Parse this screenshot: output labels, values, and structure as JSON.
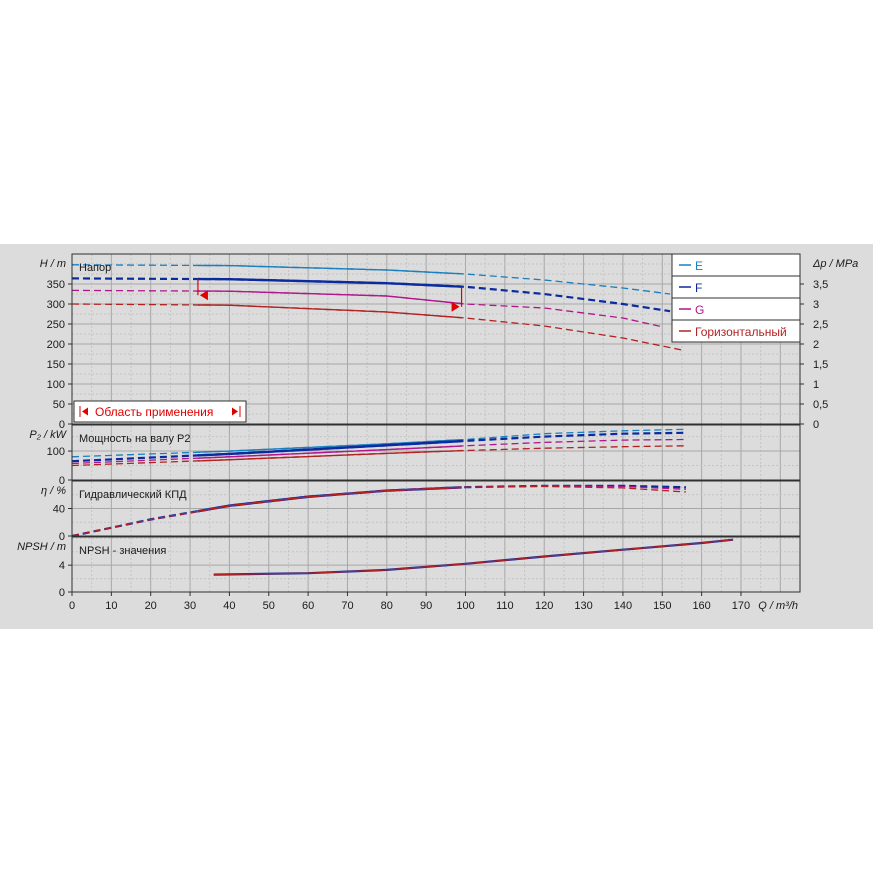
{
  "chart_data": {
    "type": "line",
    "xlabel": "Q / m³/h",
    "x_ticks": [
      0,
      10,
      20,
      30,
      40,
      50,
      60,
      70,
      80,
      90,
      100,
      110,
      120,
      130,
      140,
      150,
      160,
      170
    ],
    "xlim": [
      0,
      185
    ],
    "colors": {
      "E": "#1a7fbf",
      "F": "#0a2a9e",
      "G": "#b0178c",
      "Горизонтальный": "#b22222",
      "range": "#e00000"
    },
    "legend": [
      {
        "key": "E",
        "label": "E"
      },
      {
        "key": "F",
        "label": "F"
      },
      {
        "key": "G",
        "label": "G"
      },
      {
        "key": "Горизонтальный",
        "label": "Горизонтальный"
      }
    ],
    "panels": [
      {
        "id": "head",
        "title": "Напор",
        "ylabel": "H / m",
        "ylim": [
          0,
          425
        ],
        "y_ticks": [
          0,
          50,
          100,
          150,
          200,
          250,
          300,
          350
        ],
        "right_axis": {
          "label": "Δp / MPa",
          "ticks": [
            "0",
            "0,5",
            "1",
            "1,5",
            "2",
            "2,5",
            "3",
            "3,5"
          ],
          "values": [
            0,
            0.5,
            1,
            1.5,
            2,
            2.5,
            3,
            3.5
          ]
        },
        "application_range": {
          "label": "Область применения",
          "q_min": 32,
          "q_max": 99
        },
        "series": [
          {
            "key": "E",
            "x": [
              0,
              40,
              80,
              100,
              120,
              140,
              152
            ],
            "y": [
              398,
              396,
              385,
              375,
              360,
              340,
              325
            ]
          },
          {
            "key": "F",
            "x": [
              0,
              40,
              80,
              100,
              120,
              140,
              152
            ],
            "y": [
              364,
              362,
              352,
              343,
              325,
              300,
              282
            ]
          },
          {
            "key": "G",
            "x": [
              0,
              40,
              80,
              100,
              120,
              140,
              150
            ],
            "y": [
              334,
              332,
              320,
              300,
              290,
              265,
              243
            ]
          },
          {
            "key": "Горизонтальный",
            "x": [
              0,
              40,
              80,
              100,
              120,
              140,
              155
            ],
            "y": [
              300,
              297,
              280,
              265,
              245,
              215,
              185
            ]
          }
        ]
      },
      {
        "id": "power",
        "title": "Мощность на валу P2",
        "ylabel": "P₂ / kW",
        "ylim": [
          0,
          190
        ],
        "y_ticks": [
          0,
          100
        ],
        "series": [
          {
            "key": "E",
            "x": [
              0,
              40,
              80,
              100,
              120,
              140,
              156
            ],
            "y": [
              80,
              100,
              125,
              140,
              160,
              170,
              175
            ]
          },
          {
            "key": "F",
            "x": [
              0,
              40,
              80,
              100,
              120,
              140,
              156
            ],
            "y": [
              65,
              90,
              120,
              135,
              150,
              160,
              163
            ]
          },
          {
            "key": "G",
            "x": [
              0,
              40,
              80,
              100,
              120,
              140,
              156
            ],
            "y": [
              57,
              80,
              105,
              118,
              130,
              138,
              140
            ]
          },
          {
            "key": "Горизонтальный",
            "x": [
              0,
              40,
              80,
              100,
              120,
              140,
              156
            ],
            "y": [
              50,
              70,
              92,
              102,
              110,
              115,
              118
            ]
          }
        ]
      },
      {
        "id": "efficiency",
        "title": "Гидравлический КПД",
        "ylabel": "η / %",
        "ylim": [
          0,
          80
        ],
        "y_ticks": [
          0,
          40
        ],
        "series": [
          {
            "key": "E",
            "x": [
              0,
              20,
              40,
              60,
              80,
              100,
              120,
              140,
              156
            ],
            "y": [
              0,
              25,
              45,
              58,
              66,
              71,
              73,
              73,
              70
            ]
          },
          {
            "key": "F",
            "x": [
              0,
              20,
              40,
              60,
              80,
              100,
              120,
              140,
              156
            ],
            "y": [
              0,
              24,
              44,
              57,
              66,
              71,
              73,
              73,
              71
            ]
          },
          {
            "key": "G",
            "x": [
              0,
              20,
              40,
              60,
              80,
              100,
              120,
              140,
              156
            ],
            "y": [
              0,
              24,
              44,
              57,
              66,
              71,
              73,
              72,
              68
            ]
          },
          {
            "key": "Горизонтальный",
            "x": [
              0,
              20,
              40,
              60,
              80,
              100,
              120,
              140,
              156
            ],
            "y": [
              0,
              24,
              44,
              57,
              66,
              71,
              72,
              70,
              64
            ]
          }
        ]
      },
      {
        "id": "npsh",
        "title": "NPSH - значения",
        "ylabel": "NPSH / m",
        "ylim": [
          0,
          8.2
        ],
        "y_ticks": [
          0,
          4
        ],
        "series": [
          {
            "key": "F",
            "x": [
              36,
              60,
              80,
              100,
              120,
              140,
              160,
              168
            ],
            "y": [
              2.6,
              2.8,
              3.3,
              4.2,
              5.3,
              6.3,
              7.3,
              7.8
            ]
          },
          {
            "key": "Горизонтальный",
            "x": [
              36,
              60,
              80,
              100,
              120,
              140,
              160,
              168
            ],
            "y": [
              2.6,
              2.8,
              3.3,
              4.2,
              5.3,
              6.3,
              7.3,
              7.8
            ]
          }
        ]
      }
    ]
  }
}
